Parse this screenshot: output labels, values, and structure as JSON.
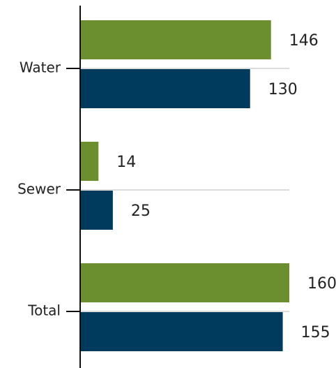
{
  "chart_data": {
    "type": "bar",
    "orientation": "horizontal",
    "categories": [
      "Water",
      "Sewer",
      "Total"
    ],
    "series": [
      {
        "color": "#6b8e2e",
        "values": [
          146,
          14,
          160
        ]
      },
      {
        "color": "#003a5c",
        "values": [
          130,
          25,
          155
        ]
      }
    ],
    "xlim": [
      0,
      160
    ],
    "grid": true
  }
}
